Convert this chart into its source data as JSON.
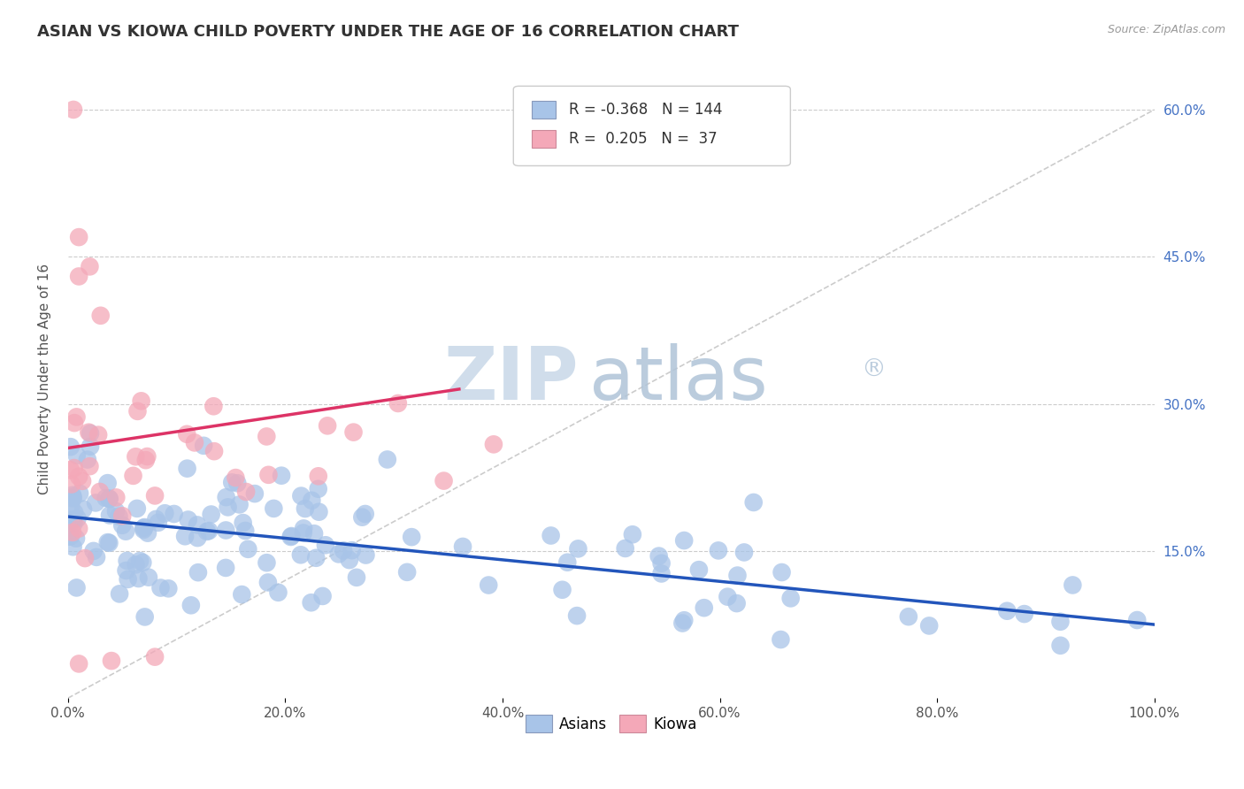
{
  "title": "ASIAN VS KIOWA CHILD POVERTY UNDER THE AGE OF 16 CORRELATION CHART",
  "source": "Source: ZipAtlas.com",
  "ylabel": "Child Poverty Under the Age of 16",
  "xlim": [
    0,
    1.0
  ],
  "ylim": [
    0,
    0.65
  ],
  "legend_r_asian": "-0.368",
  "legend_n_asian": "144",
  "legend_r_kiowa": "0.205",
  "legend_n_kiowa": "37",
  "asian_color": "#a8c4e8",
  "kiowa_color": "#f4a8b8",
  "asian_line_color": "#2255bb",
  "kiowa_line_color": "#dd3366",
  "diag_color": "#cccccc",
  "grid_color": "#cccccc",
  "watermark_zip": "ZIP",
  "watermark_atlas": "atlas",
  "watermark_r": "®",
  "title_fontsize": 13,
  "label_fontsize": 11,
  "tick_fontsize": 11,
  "legend_fontsize": 12,
  "asian_line_start_y": 0.185,
  "asian_line_end_y": 0.075,
  "kiowa_line_start_x": 0.0,
  "kiowa_line_start_y": 0.255,
  "kiowa_line_end_x": 0.36,
  "kiowa_line_end_y": 0.315
}
